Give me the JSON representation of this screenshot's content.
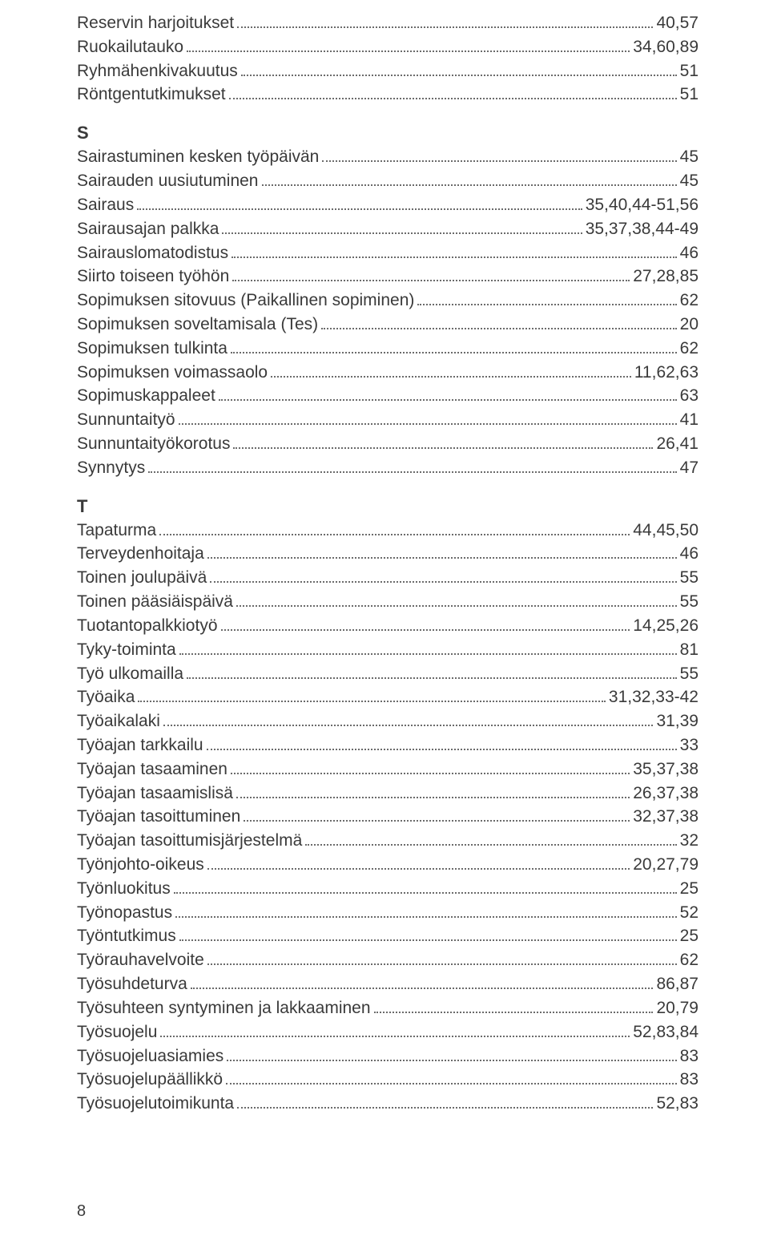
{
  "text_color": "#3a3a3a",
  "background_color": "#ffffff",
  "dot_color": "#6b6b6b",
  "font_family": "Arial, Helvetica, sans-serif",
  "body_fontsize": 21,
  "heading_fontsize": 22,
  "line_height": 1.42,
  "page_number": "8",
  "groups": [
    {
      "heading": null,
      "entries": [
        {
          "label": "Reservin harjoitukset",
          "page": "40,57"
        },
        {
          "label": "Ruokailutauko",
          "page": "34,60,89"
        },
        {
          "label": "Ryhmähenkivakuutus",
          "page": "51"
        },
        {
          "label": "Röntgentutkimukset",
          "page": "51"
        }
      ]
    },
    {
      "heading": "S",
      "entries": [
        {
          "label": "Sairastuminen kesken työpäivän",
          "page": "45"
        },
        {
          "label": "Sairauden uusiutuminen",
          "page": "45"
        },
        {
          "label": "Sairaus",
          "page": "35,40,44-51,56"
        },
        {
          "label": "Sairausajan palkka",
          "page": "35,37,38,44-49"
        },
        {
          "label": "Sairauslomatodistus",
          "page": "46"
        },
        {
          "label": "Siirto toiseen työhön",
          "page": "27,28,85"
        },
        {
          "label": "Sopimuksen sitovuus (Paikallinen sopiminen)",
          "page": "62"
        },
        {
          "label": "Sopimuksen soveltamisala (Tes)",
          "page": "20"
        },
        {
          "label": "Sopimuksen tulkinta",
          "page": "62"
        },
        {
          "label": "Sopimuksen voimassaolo",
          "page": "11,62,63"
        },
        {
          "label": "Sopimuskappaleet",
          "page": "63"
        },
        {
          "label": "Sunnuntaityö",
          "page": "41"
        },
        {
          "label": "Sunnuntaityökorotus",
          "page": "26,41"
        },
        {
          "label": "Synnytys",
          "page": "47"
        }
      ]
    },
    {
      "heading": "T",
      "entries": [
        {
          "label": "Tapaturma",
          "page": "44,45,50"
        },
        {
          "label": "Terveydenhoitaja",
          "page": "46"
        },
        {
          "label": "Toinen joulupäivä",
          "page": "55"
        },
        {
          "label": "Toinen pääsiäispäivä",
          "page": "55"
        },
        {
          "label": "Tuotantopalkkiotyö",
          "page": "14,25,26"
        },
        {
          "label": "Tyky-toiminta",
          "page": "81"
        },
        {
          "label": "Työ ulkomailla",
          "page": "55"
        },
        {
          "label": "Työaika",
          "page": "31,32,33-42"
        },
        {
          "label": "Työaikalaki",
          "page": "31,39"
        },
        {
          "label": "Työajan tarkkailu",
          "page": "33"
        },
        {
          "label": "Työajan tasaaminen",
          "page": "35,37,38"
        },
        {
          "label": "Työajan tasaamislisä",
          "page": "26,37,38"
        },
        {
          "label": "Työajan tasoittuminen",
          "page": "32,37,38"
        },
        {
          "label": "Työajan tasoittumisjärjestelmä",
          "page": "32"
        },
        {
          "label": "Työnjohto-oikeus",
          "page": "20,27,79"
        },
        {
          "label": "Työnluokitus",
          "page": "25"
        },
        {
          "label": "Työnopastus",
          "page": "52"
        },
        {
          "label": "Työntutkimus",
          "page": "25"
        },
        {
          "label": "Työrauhavelvoite",
          "page": "62"
        },
        {
          "label": "Työsuhdeturva",
          "page": "86,87"
        },
        {
          "label": "Työsuhteen syntyminen ja lakkaaminen",
          "page": "20,79"
        },
        {
          "label": "Työsuojelu",
          "page": "52,83,84"
        },
        {
          "label": "Työsuojeluasiamies",
          "page": "83"
        },
        {
          "label": "Työsuojelupäällikkö",
          "page": "83"
        },
        {
          "label": "Työsuojelutoimikunta",
          "page": "52,83"
        }
      ]
    }
  ]
}
